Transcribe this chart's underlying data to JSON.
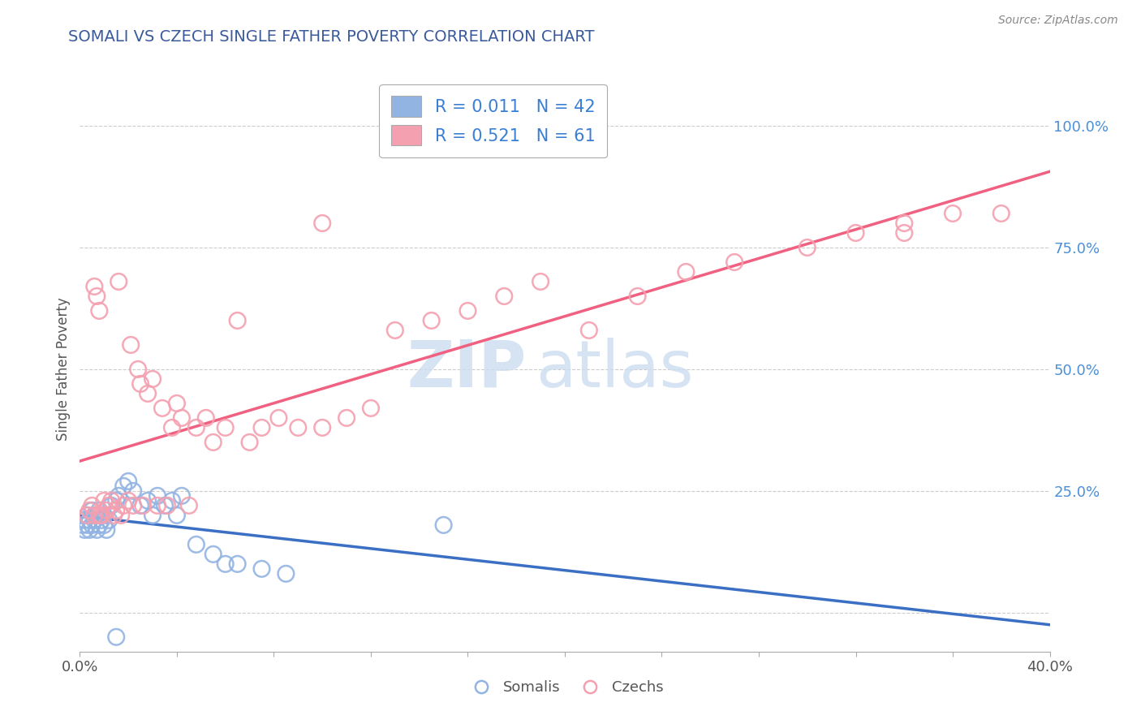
{
  "title": "SOMALI VS CZECH SINGLE FATHER POVERTY CORRELATION CHART",
  "source": "Source: ZipAtlas.com",
  "ylabel": "Single Father Poverty",
  "xlim": [
    0.0,
    0.4
  ],
  "ylim": [
    -0.08,
    1.08
  ],
  "yticks": [
    0.0,
    0.25,
    0.5,
    0.75,
    1.0
  ],
  "ytick_labels": [
    "",
    "25.0%",
    "50.0%",
    "75.0%",
    "100.0%"
  ],
  "somali_R": 0.011,
  "somali_N": 42,
  "czech_R": 0.521,
  "czech_N": 61,
  "somali_color": "#92b4e3",
  "czech_color": "#f4a0b0",
  "somali_line_color": "#3a6fc4",
  "czech_line_color": "#f06080",
  "somali_x": [
    0.001,
    0.002,
    0.002,
    0.003,
    0.003,
    0.004,
    0.004,
    0.005,
    0.005,
    0.006,
    0.006,
    0.007,
    0.007,
    0.008,
    0.008,
    0.009,
    0.01,
    0.01,
    0.011,
    0.012,
    0.013,
    0.015,
    0.016,
    0.018,
    0.02,
    0.022,
    0.025,
    0.028,
    0.032,
    0.035,
    0.038,
    0.042,
    0.048,
    0.055,
    0.06,
    0.065,
    0.075,
    0.085,
    0.03,
    0.04,
    0.15,
    0.015
  ],
  "somali_y": [
    0.18,
    0.17,
    0.19,
    0.2,
    0.18,
    0.19,
    0.17,
    0.21,
    0.18,
    0.2,
    0.19,
    0.17,
    0.2,
    0.18,
    0.21,
    0.19,
    0.18,
    0.2,
    0.17,
    0.19,
    0.22,
    0.23,
    0.24,
    0.26,
    0.27,
    0.25,
    0.22,
    0.23,
    0.24,
    0.22,
    0.23,
    0.24,
    0.14,
    0.12,
    0.1,
    0.1,
    0.09,
    0.08,
    0.2,
    0.2,
    0.18,
    -0.05
  ],
  "czech_x": [
    0.003,
    0.004,
    0.005,
    0.006,
    0.006,
    0.007,
    0.008,
    0.008,
    0.009,
    0.01,
    0.011,
    0.012,
    0.013,
    0.014,
    0.015,
    0.016,
    0.017,
    0.018,
    0.02,
    0.021,
    0.022,
    0.024,
    0.025,
    0.026,
    0.028,
    0.03,
    0.032,
    0.034,
    0.036,
    0.038,
    0.04,
    0.042,
    0.045,
    0.048,
    0.052,
    0.055,
    0.06,
    0.065,
    0.07,
    0.075,
    0.082,
    0.09,
    0.1,
    0.11,
    0.12,
    0.13,
    0.145,
    0.16,
    0.175,
    0.19,
    0.21,
    0.23,
    0.25,
    0.27,
    0.3,
    0.32,
    0.34,
    0.36,
    0.38,
    0.34,
    0.1
  ],
  "czech_y": [
    0.2,
    0.21,
    0.22,
    0.67,
    0.2,
    0.65,
    0.2,
    0.62,
    0.2,
    0.23,
    0.21,
    0.22,
    0.23,
    0.2,
    0.21,
    0.68,
    0.2,
    0.22,
    0.23,
    0.55,
    0.22,
    0.5,
    0.47,
    0.22,
    0.45,
    0.48,
    0.22,
    0.42,
    0.22,
    0.38,
    0.43,
    0.4,
    0.22,
    0.38,
    0.4,
    0.35,
    0.38,
    0.6,
    0.35,
    0.38,
    0.4,
    0.38,
    0.38,
    0.4,
    0.42,
    0.58,
    0.6,
    0.62,
    0.65,
    0.68,
    0.58,
    0.65,
    0.7,
    0.72,
    0.75,
    0.78,
    0.8,
    0.82,
    0.82,
    0.78,
    0.8
  ]
}
